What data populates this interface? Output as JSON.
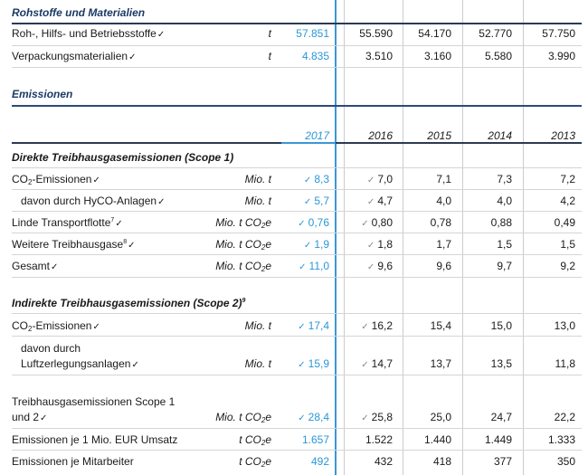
{
  "years": [
    "2017",
    "2016",
    "2015",
    "2014",
    "2013"
  ],
  "section_materials": {
    "title": "Rohstoffe und Materialien",
    "rows": [
      {
        "label": "Roh-, Hilfs- und Betriebsstoffe",
        "unit": "t",
        "values": [
          "57.851",
          "55.590",
          "54.170",
          "52.770",
          "57.750"
        ]
      },
      {
        "label": "Verpackungsmaterialien",
        "unit": "t",
        "values": [
          "4.835",
          "3.510",
          "3.160",
          "5.580",
          "3.990"
        ]
      }
    ]
  },
  "section_emissions": {
    "title": "Emissionen"
  },
  "scope1": {
    "title": "Direkte Treibhausgasemissionen (Scope 1)",
    "rows": {
      "co2": {
        "label_a": "CO",
        "label_sub": "2",
        "label_b": "-Emissionen",
        "unit": "Mio. t",
        "values": [
          "8,3",
          "7,0",
          "7,1",
          "7,3",
          "7,2"
        ]
      },
      "hyco": {
        "label": "davon durch HyCO-Anlagen",
        "unit": "Mio. t",
        "values": [
          "5,7",
          "4,7",
          "4,0",
          "4,0",
          "4,2"
        ]
      },
      "transport": {
        "label": "Linde Transportflotte",
        "footnote": "7",
        "unit_a": "Mio. t CO",
        "unit_sub": "2",
        "unit_b": "e",
        "values": [
          "0,76",
          "0,80",
          "0,78",
          "0,88",
          "0,49"
        ]
      },
      "weitere": {
        "label": "Weitere Treibhausgase",
        "footnote": "8",
        "unit_a": "Mio. t CO",
        "unit_sub": "2",
        "unit_b": "e",
        "values": [
          "1,9",
          "1,8",
          "1,7",
          "1,5",
          "1,5"
        ]
      },
      "gesamt": {
        "label": "Gesamt",
        "unit_a": "Mio. t CO",
        "unit_sub": "2",
        "unit_b": "e",
        "values": [
          "11,0",
          "9,6",
          "9,6",
          "9,7",
          "9,2"
        ]
      }
    }
  },
  "scope2": {
    "title": "Indirekte Treibhausgasemissionen (Scope 2)",
    "footnote": "9",
    "rows": {
      "co2": {
        "label_a": "CO",
        "label_sub": "2",
        "label_b": "-Emissionen",
        "unit": "Mio. t",
        "values": [
          "17,4",
          "16,2",
          "15,4",
          "15,0",
          "13,0"
        ]
      },
      "luft": {
        "label_line1": "davon durch",
        "label_line2": "Luftzerlegungsanlagen",
        "unit": "Mio. t",
        "values": [
          "15,9",
          "14,7",
          "13,7",
          "13,5",
          "11,8"
        ]
      }
    }
  },
  "totals": {
    "scope12": {
      "label_line1": "Treibhausgasemissionen Scope 1",
      "label_line2": "und 2",
      "unit_a": "Mio. t CO",
      "unit_sub": "2",
      "unit_b": "e",
      "values": [
        "28,4",
        "25,8",
        "25,0",
        "24,7",
        "22,2"
      ]
    },
    "umsatz": {
      "label": "Emissionen je 1 Mio. EUR Umsatz",
      "unit_a": "t CO",
      "unit_sub": "2",
      "unit_b": "e",
      "values": [
        "1.657",
        "1.522",
        "1.440",
        "1.449",
        "1.333"
      ]
    },
    "mitarbeiter": {
      "label": "Emissionen je Mitarbeiter",
      "unit_a": "t CO",
      "unit_sub": "2",
      "unit_b": "e",
      "values": [
        "492",
        "432",
        "418",
        "377",
        "350"
      ]
    }
  },
  "verified_mark": "✓",
  "colors": {
    "highlight": "#2a97d6",
    "heading": "#1b3a66",
    "rule": "#2b3a55"
  }
}
